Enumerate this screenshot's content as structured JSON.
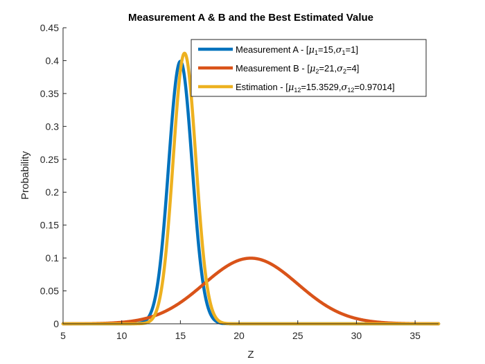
{
  "chart_data": {
    "type": "line",
    "title": "Measurement A & B and the Best Estimated Value",
    "xlabel": "Z",
    "ylabel": "Probability",
    "xlim": [
      5,
      37
    ],
    "ylim": [
      0,
      0.45
    ],
    "x_ticks": [
      5,
      10,
      15,
      20,
      25,
      30,
      35
    ],
    "y_ticks": [
      0,
      0.05,
      0.1,
      0.15,
      0.2,
      0.25,
      0.3,
      0.35,
      0.4,
      0.45
    ],
    "x_tick_labels": [
      "5",
      "10",
      "15",
      "20",
      "25",
      "30",
      "35"
    ],
    "y_tick_labels": [
      "0",
      "0.05",
      "0.1",
      "0.15",
      "0.2",
      "0.25",
      "0.3",
      "0.35",
      "0.4",
      "0.45"
    ],
    "grid": false,
    "legend_position": "top-right",
    "series": [
      {
        "legend_prefix": "Measurement A - [",
        "mu_sym": "μ",
        "mu_sub": "1",
        "mu_val": "=15,",
        "sigma_sym": "σ",
        "sigma_sub": "1",
        "sigma_val": "=1]",
        "distribution": "normal",
        "mu": 15,
        "sigma": 1,
        "color": "#0072BD"
      },
      {
        "legend_prefix": "Measurement B - [",
        "mu_sym": "μ",
        "mu_sub": "2",
        "mu_val": "=21,",
        "sigma_sym": "σ",
        "sigma_sub": "2",
        "sigma_val": "=4]",
        "distribution": "normal",
        "mu": 21,
        "sigma": 4,
        "color": "#D95319"
      },
      {
        "legend_prefix": "Estimation - [",
        "mu_sym": "μ",
        "mu_sub": "12",
        "mu_val": "=15.3529,",
        "sigma_sym": "σ",
        "sigma_sub": "12",
        "sigma_val": "=0.97014]",
        "distribution": "normal",
        "mu": 15.3529,
        "sigma": 0.97014,
        "color": "#EDB120"
      }
    ]
  }
}
